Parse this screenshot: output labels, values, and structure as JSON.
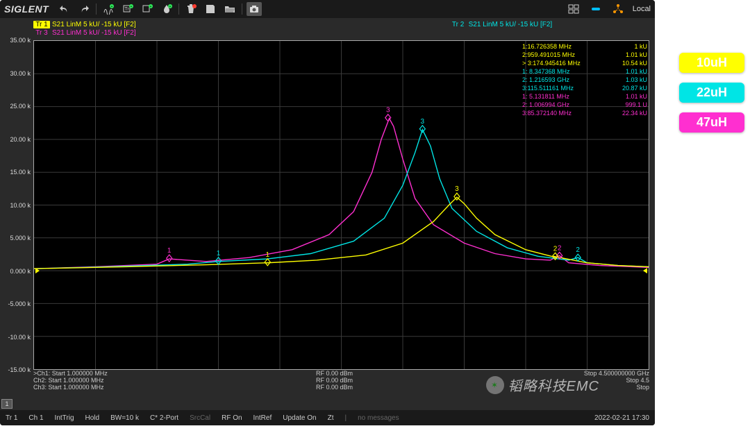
{
  "brand": "SIGLENT",
  "toolbar_right_label": "Local",
  "colors": {
    "bg": "#000000",
    "grid": "#3a3a3a",
    "axis": "#aaaaaa",
    "tr1": "#ffff00",
    "tr2": "#00e5e5",
    "tr3": "#ff2fd0",
    "icon": "#cccccc",
    "icon_green": "#2eea5a",
    "icon_blue": "#00bfff",
    "icon_red": "#ff3b30",
    "icon_orange": "#ff9800"
  },
  "trace_header": {
    "tr1": {
      "box": "Tr 1",
      "text": "S21  LinM  5 kU/ -15 kU  [F2]"
    },
    "tr2": {
      "box": "Tr 2",
      "text": "S21  LinM  5 kU/ -15 kU  [F2]"
    },
    "tr3": {
      "box": "Tr 3",
      "text": "S21  LinM  5 kU/ -15 kU  [F2]"
    }
  },
  "y_axis": {
    "min": -15,
    "max": 35,
    "step": 5,
    "unit": "k",
    "ticks": [
      "35.00 k",
      "30.00 k",
      "25.00 k",
      "20.00 k",
      "15.00 k",
      "10.00 k",
      "5.000 k",
      "0.000 k",
      "-5.000 k",
      "-10.00 k",
      "-15.00 k"
    ]
  },
  "x_axis": {
    "divisions": 10
  },
  "chart": {
    "type": "line",
    "series": [
      {
        "name": "tr3",
        "color": "#ff2fd0",
        "width": 1.4,
        "points": [
          [
            0,
            0.3
          ],
          [
            10,
            0.6
          ],
          [
            20,
            1.0
          ],
          [
            22,
            1.8
          ],
          [
            28,
            1.4
          ],
          [
            35,
            2.0
          ],
          [
            42,
            3.2
          ],
          [
            48,
            5.5
          ],
          [
            52,
            9
          ],
          [
            55,
            15
          ],
          [
            56.5,
            20
          ],
          [
            57.8,
            23.2
          ],
          [
            58.5,
            22
          ],
          [
            60,
            17
          ],
          [
            62,
            11
          ],
          [
            65,
            7
          ],
          [
            70,
            4.2
          ],
          [
            75,
            2.6
          ],
          [
            80,
            1.8
          ],
          [
            84,
            1.6
          ],
          [
            85.5,
            2.3
          ],
          [
            87,
            1.2
          ],
          [
            92,
            0.8
          ],
          [
            100,
            0.5
          ]
        ]
      },
      {
        "name": "tr2",
        "color": "#00e5e5",
        "width": 1.4,
        "points": [
          [
            0,
            0.3
          ],
          [
            12,
            0.6
          ],
          [
            25,
            1.0
          ],
          [
            30,
            1.4
          ],
          [
            38,
            1.8
          ],
          [
            45,
            2.6
          ],
          [
            52,
            4.5
          ],
          [
            57,
            8
          ],
          [
            60,
            13
          ],
          [
            62,
            18
          ],
          [
            63.2,
            21.5
          ],
          [
            64.5,
            19
          ],
          [
            66,
            14
          ],
          [
            68,
            9.5
          ],
          [
            72,
            6
          ],
          [
            77,
            3.5
          ],
          [
            82,
            2.2
          ],
          [
            87,
            1.6
          ],
          [
            88.5,
            2.0
          ],
          [
            90,
            1.2
          ],
          [
            95,
            0.8
          ],
          [
            100,
            0.6
          ]
        ]
      },
      {
        "name": "tr1",
        "color": "#ffff00",
        "width": 1.4,
        "points": [
          [
            0,
            0.3
          ],
          [
            15,
            0.6
          ],
          [
            28,
            0.9
          ],
          [
            38,
            1.2
          ],
          [
            46,
            1.6
          ],
          [
            54,
            2.4
          ],
          [
            60,
            4.2
          ],
          [
            65,
            7.5
          ],
          [
            67.5,
            10
          ],
          [
            68.8,
            11.2
          ],
          [
            70,
            10.2
          ],
          [
            72,
            8
          ],
          [
            75,
            5.5
          ],
          [
            80,
            3.2
          ],
          [
            85,
            2.0
          ],
          [
            84.5,
            2.2
          ],
          [
            90,
            1.2
          ],
          [
            95,
            0.8
          ],
          [
            100,
            0.6
          ]
        ]
      }
    ],
    "markers": [
      {
        "trace": "tr3",
        "n": "1",
        "x": 22,
        "y": 1.9
      },
      {
        "trace": "tr3",
        "n": "3",
        "x": 57.6,
        "y": 23.3
      },
      {
        "trace": "tr3",
        "n": "2",
        "x": 85.5,
        "y": 2.3
      },
      {
        "trace": "tr2",
        "n": "1",
        "x": 30,
        "y": 1.5
      },
      {
        "trace": "tr2",
        "n": "3",
        "x": 63.2,
        "y": 21.6
      },
      {
        "trace": "tr2",
        "n": "2",
        "x": 88.5,
        "y": 2.0
      },
      {
        "trace": "tr1",
        "n": "1",
        "x": 38,
        "y": 1.3
      },
      {
        "trace": "tr1",
        "n": "3",
        "x": 68.8,
        "y": 11.3
      },
      {
        "trace": "tr1",
        "n": "2",
        "x": 84.8,
        "y": 2.2
      }
    ]
  },
  "marker_readout": [
    {
      "color": "#ffff00",
      "rows": [
        {
          "l": "1:16.726358 MHz",
          "r": "1 kU"
        },
        {
          "l": "2:959.491015 MHz",
          "r": "1.01 kU"
        },
        {
          "l": "> 3:174.945416 MHz",
          "r": "10.54 kU"
        }
      ]
    },
    {
      "color": "#00e5e5",
      "rows": [
        {
          "l": "1:  8.347368 MHz",
          "r": "1.01 kU"
        },
        {
          "l": "2:  1.216593 GHz",
          "r": "1.03 kU"
        },
        {
          "l": "3:115.511161 MHz",
          "r": "20.87 kU"
        }
      ]
    },
    {
      "color": "#ff2fd0",
      "rows": [
        {
          "l": "1:  5.131811 MHz",
          "r": "1.01 kU"
        },
        {
          "l": "2:  1.006994 GHz",
          "r": "999.1 U"
        },
        {
          "l": "3:85.372140 MHz",
          "r": "22.34 kU"
        }
      ]
    }
  ],
  "channel_info": {
    "rows": [
      {
        "l": ">Ch1: Start 1.000000 MHz",
        "c": "RF 0.00 dBm",
        "r": "Stop 4.500000000 GHz"
      },
      {
        "l": "Ch2: Start 1.000000 MHz",
        "c": "RF 0.00 dBm",
        "r": "Stop 4.5"
      },
      {
        "l": "Ch3: Start 1.000000 MHz",
        "c": "RF 0.00 dBm",
        "r": "Stop"
      }
    ]
  },
  "bottom": {
    "items": [
      "Tr 1",
      "Ch 1",
      "IntTrig",
      "Hold",
      "BW=10 k",
      "C* 2-Port"
    ],
    "dim": [
      "SrcCal"
    ],
    "items2": [
      "RF On",
      "IntRef",
      "Update On",
      "Zt"
    ],
    "msg": "no messages",
    "date": "2022-02-21 17:30"
  },
  "tab": "1",
  "legend": [
    {
      "label": "10uH",
      "bg": "#ffff00",
      "fg": "#ffffff"
    },
    {
      "label": "22uH",
      "bg": "#00e5e5",
      "fg": "#ffffff"
    },
    {
      "label": "47uH",
      "bg": "#ff2fd0",
      "fg": "#ffffff"
    }
  ],
  "watermark": "韬略科技EMC"
}
